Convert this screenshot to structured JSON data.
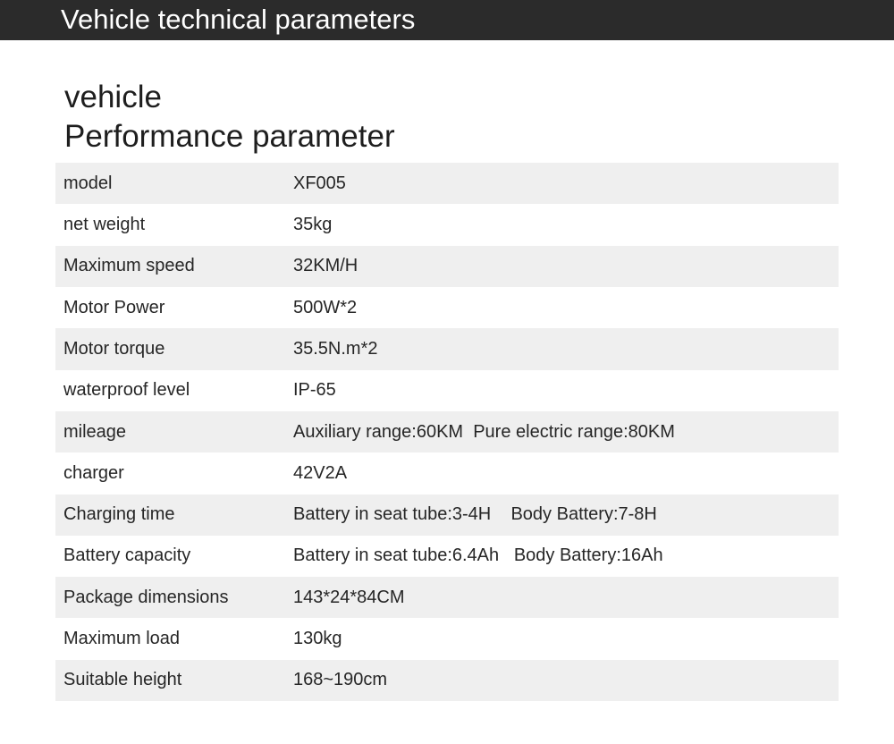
{
  "banner": {
    "title": "Vehicle technical parameters"
  },
  "heading": {
    "line1": "vehicle",
    "line2": "Performance parameter"
  },
  "specs": [
    {
      "label": "model",
      "value": "XF005"
    },
    {
      "label": "net weight",
      "value": "35kg"
    },
    {
      "label": "Maximum speed",
      "value": "32KM/H"
    },
    {
      "label": "Motor Power",
      "value": "500W*2"
    },
    {
      "label": "Motor torque",
      "value": "35.5N.m*2"
    },
    {
      "label": "waterproof level",
      "value": "IP-65"
    },
    {
      "label": "mileage",
      "value": "Auxiliary range:60KM  Pure electric range:80KM"
    },
    {
      "label": "charger",
      "value": "42V2A"
    },
    {
      "label": "Charging time",
      "value": "Battery in seat tube:3-4H    Body Battery:7-8H"
    },
    {
      "label": "Battery capacity",
      "value": "Battery in seat tube:6.4Ah   Body Battery:16Ah"
    },
    {
      "label": "Package dimensions",
      "value": "143*24*84CM"
    },
    {
      "label": "Maximum load",
      "value": "130kg"
    },
    {
      "label": "Suitable height",
      "value": "168~190cm"
    }
  ]
}
